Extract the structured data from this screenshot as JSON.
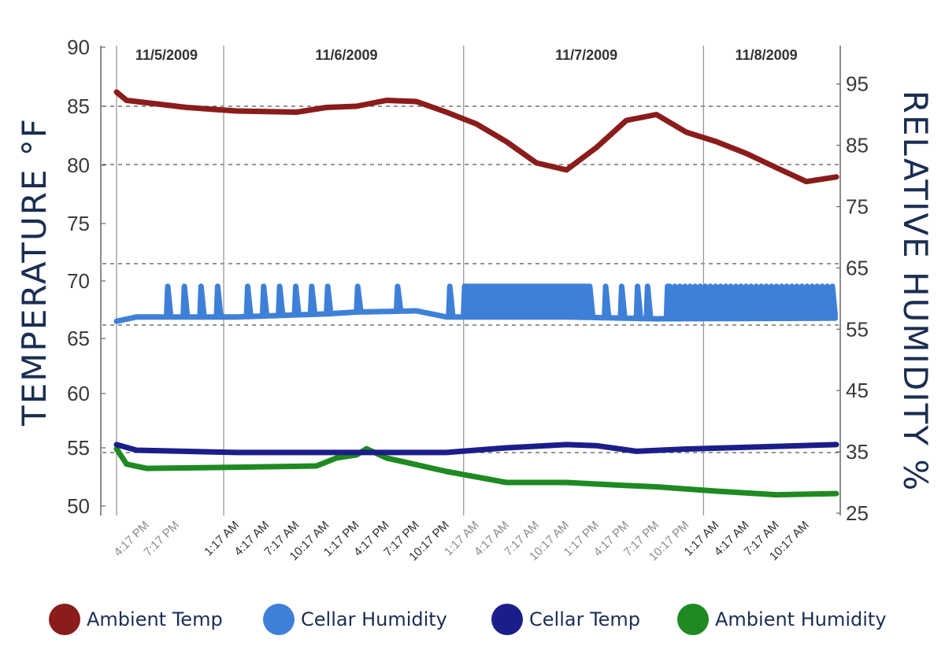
{
  "chart_data": {
    "type": "line",
    "x_type": "datetime",
    "x_start": "11/5/2009 1:17 PM",
    "x_end": "11/8/2009 1:17 PM",
    "x_labels": [
      {
        "time": "11/5/2009 4:17 PM",
        "label": "4:17 PM",
        "style": "light"
      },
      {
        "time": "11/5/2009 7:17 PM",
        "label": "7:17 PM",
        "style": "light"
      },
      {
        "time": "11/6/2009 1:17 AM",
        "label": "1:17 AM",
        "style": "dark"
      },
      {
        "time": "11/6/2009 4:17 AM",
        "label": "4:17 AM",
        "style": "dark"
      },
      {
        "time": "11/6/2009 7:17 AM",
        "label": "7:17 AM",
        "style": "dark"
      },
      {
        "time": "11/6/2009 10:17 AM",
        "label": "10:17 AM",
        "style": "dark"
      },
      {
        "time": "11/6/2009 1:17 PM",
        "label": "1:17 PM",
        "style": "dark"
      },
      {
        "time": "11/6/2009 4:17 PM",
        "label": "4:17 PM",
        "style": "dark"
      },
      {
        "time": "11/6/2009 7:17 PM",
        "label": "7:17 PM",
        "style": "dark"
      },
      {
        "time": "11/6/2009 10:17 PM",
        "label": "10:17 PM",
        "style": "dark"
      },
      {
        "time": "11/7/2009 1:17 AM",
        "label": "1:17 AM",
        "style": "light"
      },
      {
        "time": "11/7/2009 4:17 AM",
        "label": "4:17 AM",
        "style": "light"
      },
      {
        "time": "11/7/2009 7:17 AM",
        "label": "7:17 AM",
        "style": "light"
      },
      {
        "time": "11/7/2009 10:17 AM",
        "label": "10:17 AM",
        "style": "light"
      },
      {
        "time": "11/7/2009 1:17 PM",
        "label": "1:17 PM",
        "style": "light"
      },
      {
        "time": "11/7/2009 4:17 PM",
        "label": "4:17 PM",
        "style": "light"
      },
      {
        "time": "11/7/2009 7:17 PM",
        "label": "7:17 PM",
        "style": "light"
      },
      {
        "time": "11/7/2009 10:17 PM",
        "label": "10:17 PM",
        "style": "light"
      },
      {
        "time": "11/8/2009 1:17 AM",
        "label": "1:17 AM",
        "style": "dark"
      },
      {
        "time": "11/8/2009 4:17 AM",
        "label": "4:17 AM",
        "style": "dark"
      },
      {
        "time": "11/8/2009 7:17 AM",
        "label": "7:17 AM",
        "style": "dark"
      },
      {
        "time": "11/8/2009 10:17 AM",
        "label": "10:17 AM",
        "style": "dark"
      }
    ],
    "date_labels": [
      {
        "time": "11/5/2009 6:17 PM",
        "label": "11/5/2009"
      },
      {
        "time": "11/6/2009 12:17 PM",
        "label": "11/6/2009"
      },
      {
        "time": "11/7/2009 12:17 PM",
        "label": "11/7/2009"
      },
      {
        "time": "11/8/2009 6:17 AM",
        "label": "11/8/2009"
      }
    ],
    "day_boundaries": [
      "11/5/2009 1:17 PM",
      "11/6/2009 12:00 AM",
      "11/7/2009 12:00 AM",
      "11/8/2009 12:00 AM"
    ],
    "y_left": {
      "label": "TEMPERATURE °F",
      "ticks": [
        90,
        85,
        80,
        75,
        70,
        65,
        60,
        55,
        50
      ]
    },
    "y_right": {
      "label": "RELATIVE HUMIDITY %",
      "ticks": [
        95,
        85,
        75,
        65,
        55,
        45,
        35,
        25
      ],
      "range": [
        25,
        101
      ]
    },
    "grid": "horizontal-dashed",
    "legend_position": "bottom",
    "series": [
      {
        "name": "Ambient Temp",
        "color": "#8b1c1c",
        "axis": "left",
        "spikes": "none",
        "points": [
          {
            "t": "11/5/2009 1:17 PM",
            "v": 86.2
          },
          {
            "t": "11/5/2009 2:17 PM",
            "v": 85.5
          },
          {
            "t": "11/5/2009 5:17 PM",
            "v": 85.2
          },
          {
            "t": "11/5/2009 8:17 PM",
            "v": 84.9
          },
          {
            "t": "11/6/2009 1:17 AM",
            "v": 84.6
          },
          {
            "t": "11/6/2009 7:17 AM",
            "v": 84.5
          },
          {
            "t": "11/6/2009 10:17 AM",
            "v": 84.9
          },
          {
            "t": "11/6/2009 1:17 PM",
            "v": 85.0
          },
          {
            "t": "11/6/2009 4:17 PM",
            "v": 85.5
          },
          {
            "t": "11/6/2009 7:17 PM",
            "v": 85.4
          },
          {
            "t": "11/6/2009 10:17 PM",
            "v": 84.5
          },
          {
            "t": "11/7/2009 1:17 AM",
            "v": 83.5
          },
          {
            "t": "11/7/2009 4:17 AM",
            "v": 82.0
          },
          {
            "t": "11/7/2009 7:17 AM",
            "v": 80.2
          },
          {
            "t": "11/7/2009 10:17 AM",
            "v": 79.6
          },
          {
            "t": "11/7/2009 1:17 PM",
            "v": 81.5
          },
          {
            "t": "11/7/2009 4:17 PM",
            "v": 83.8
          },
          {
            "t": "11/7/2009 7:17 PM",
            "v": 84.3
          },
          {
            "t": "11/7/2009 10:17 PM",
            "v": 82.8
          },
          {
            "t": "11/8/2009 1:17 AM",
            "v": 82.0
          },
          {
            "t": "11/8/2009 4:17 AM",
            "v": 81.0
          },
          {
            "t": "11/8/2009 7:17 AM",
            "v": 79.8
          },
          {
            "t": "11/8/2009 10:17 AM",
            "v": 78.6
          },
          {
            "t": "11/8/2009 1:17 PM",
            "v": 79.0
          }
        ]
      },
      {
        "name": "Cellar Humidity",
        "color": "#3e80d8",
        "axis": "right",
        "spike_peak": 62,
        "points": [
          {
            "t": "11/5/2009 1:17 PM",
            "v": 56.3
          },
          {
            "t": "11/5/2009 3:17 PM",
            "v": 57.0
          },
          {
            "t": "11/6/2009 1:17 AM",
            "v": 57.0
          },
          {
            "t": "11/6/2009 10:17 AM",
            "v": 57.5
          },
          {
            "t": "11/6/2009 1:17 PM",
            "v": 57.8
          },
          {
            "t": "11/6/2009 7:17 PM",
            "v": 58.0
          },
          {
            "t": "11/6/2009 10:17 PM",
            "v": 57.0
          },
          {
            "t": "11/7/2009 10:17 AM",
            "v": 57.0
          },
          {
            "t": "11/7/2009 7:17 PM",
            "v": 56.7
          },
          {
            "t": "11/8/2009 1:17 PM",
            "v": 56.8
          }
        ],
        "spikes": {
          "ranges": [
            [
              "11/5/2009 6:17 PM",
              "11/5/2009 11:17 PM",
              4
            ],
            [
              "11/6/2009 2:17 AM",
              "11/6/2009 10:17 AM",
              6
            ],
            [
              "11/6/2009 1:17 PM",
              "11/6/2009 5:17 PM",
              2
            ],
            [
              "11/6/2009 10:30 PM",
              "11/6/2009 11:59 PM",
              2
            ],
            [
              "11/7/2009 12:00 AM",
              "11/7/2009 12:17 PM",
              48
            ],
            [
              "11/7/2009 12:30 PM",
              "11/7/2009 5:17 PM",
              4
            ],
            [
              "11/7/2009 6:17 PM",
              "11/7/2009 8:17 PM",
              2
            ],
            [
              "11/7/2009 8:30 PM",
              "11/8/2009 1:17 PM",
              34
            ]
          ]
        }
      },
      {
        "name": "Cellar Temp",
        "color": "#1b1e8a",
        "axis": "left",
        "spikes": "none",
        "points": [
          {
            "t": "11/5/2009 1:17 PM",
            "v": 55.3
          },
          {
            "t": "11/5/2009 3:17 PM",
            "v": 54.8
          },
          {
            "t": "11/6/2009 1:17 AM",
            "v": 54.6
          },
          {
            "t": "11/6/2009 1:17 PM",
            "v": 54.6
          },
          {
            "t": "11/6/2009 10:17 PM",
            "v": 54.6
          },
          {
            "t": "11/7/2009 4:17 AM",
            "v": 55.0
          },
          {
            "t": "11/7/2009 10:17 AM",
            "v": 55.3
          },
          {
            "t": "11/7/2009 1:17 PM",
            "v": 55.2
          },
          {
            "t": "11/7/2009 5:17 PM",
            "v": 54.7
          },
          {
            "t": "11/7/2009 10:17 PM",
            "v": 54.9
          },
          {
            "t": "11/8/2009 1:17 PM",
            "v": 55.3
          }
        ]
      },
      {
        "name": "Ambient Humidity",
        "color": "#1f8a22",
        "axis": "right",
        "spikes": "none",
        "points": [
          {
            "t": "11/5/2009 1:17 PM",
            "v": 35.5
          },
          {
            "t": "11/5/2009 2:17 PM",
            "v": 33.0
          },
          {
            "t": "11/5/2009 4:17 PM",
            "v": 32.3
          },
          {
            "t": "11/6/2009 1:17 AM",
            "v": 32.5
          },
          {
            "t": "11/6/2009 9:17 AM",
            "v": 32.7
          },
          {
            "t": "11/6/2009 11:17 AM",
            "v": 34.0
          },
          {
            "t": "11/6/2009 1:17 PM",
            "v": 34.5
          },
          {
            "t": "11/6/2009 2:17 PM",
            "v": 35.5
          },
          {
            "t": "11/6/2009 4:17 PM",
            "v": 34.0
          },
          {
            "t": "11/6/2009 10:17 PM",
            "v": 31.8
          },
          {
            "t": "11/7/2009 4:17 AM",
            "v": 30.0
          },
          {
            "t": "11/7/2009 10:17 AM",
            "v": 30.0
          },
          {
            "t": "11/7/2009 4:17 PM",
            "v": 29.5
          },
          {
            "t": "11/7/2009 7:17 PM",
            "v": 29.3
          },
          {
            "t": "11/8/2009 1:17 AM",
            "v": 28.6
          },
          {
            "t": "11/8/2009 7:17 AM",
            "v": 28.0
          },
          {
            "t": "11/8/2009 1:17 PM",
            "v": 28.2
          }
        ]
      }
    ]
  }
}
